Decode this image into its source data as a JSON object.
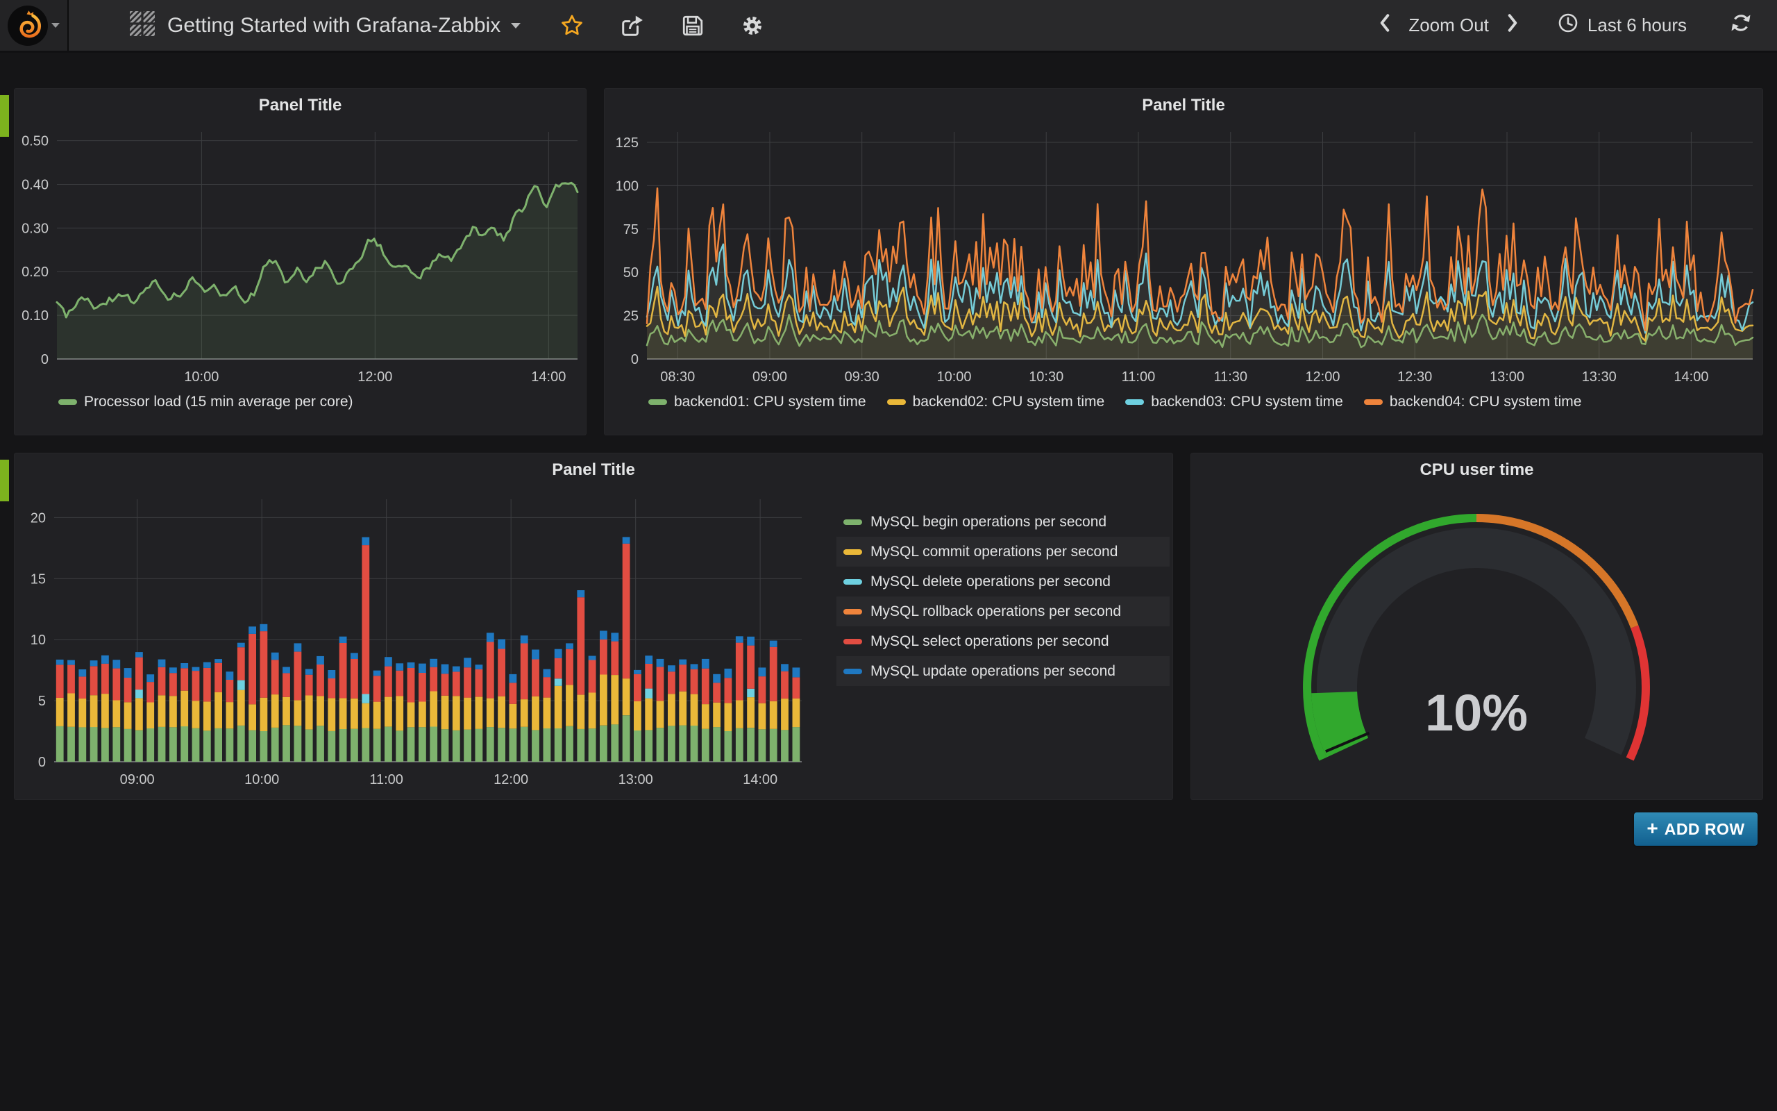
{
  "navbar": {
    "title": "Getting Started with Grafana-Zabbix",
    "zoom_out": "Zoom Out",
    "time_range": "Last 6 hours"
  },
  "add_row": {
    "icon": "+",
    "label": "ADD ROW"
  },
  "colors": {
    "green": "#7EB26D",
    "yellow": "#EAB839",
    "cyan": "#6ED0E0",
    "orange": "#EF843C",
    "red": "#E24D42",
    "blue": "#1F78C1",
    "gauge_green": "rgba(50,172,45,0.97)",
    "gauge_orange": "rgba(237,129,40,0.89)",
    "gauge_red": "rgba(245,54,54,0.9)",
    "star": "#F6A821",
    "row_strip": "#7db31e"
  },
  "chart_data": [
    {
      "id": "processor-load",
      "type": "line",
      "title": "Panel Title",
      "ylim": [
        0,
        0.52
      ],
      "points": 170,
      "fill": 0.13,
      "noise_seed": 55,
      "yticks": [
        {
          "v": 0,
          "label": "0"
        },
        {
          "v": 0.1,
          "label": "0.10"
        },
        {
          "v": 0.2,
          "label": "0.20"
        },
        {
          "v": 0.3,
          "label": "0.30"
        },
        {
          "v": 0.4,
          "label": "0.40"
        },
        {
          "v": 0.5,
          "label": "0.50"
        }
      ],
      "xticks": [
        {
          "p": 0.2778,
          "label": "10:00"
        },
        {
          "p": 0.6111,
          "label": "12:00"
        },
        {
          "p": 0.9444,
          "label": "14:00"
        }
      ],
      "series": [
        {
          "name": "Processor load (15 min average per core)",
          "color": "#7EB26D",
          "noise": 0.008,
          "keypoints": [
            [
              0,
              0.13
            ],
            [
              0.02,
              0.1
            ],
            [
              0.05,
              0.14
            ],
            [
              0.07,
              0.12
            ],
            [
              0.1,
              0.135
            ],
            [
              0.13,
              0.145
            ],
            [
              0.15,
              0.13
            ],
            [
              0.17,
              0.16
            ],
            [
              0.19,
              0.175
            ],
            [
              0.21,
              0.14
            ],
            [
              0.24,
              0.15
            ],
            [
              0.26,
              0.185
            ],
            [
              0.28,
              0.155
            ],
            [
              0.3,
              0.17
            ],
            [
              0.32,
              0.145
            ],
            [
              0.34,
              0.165
            ],
            [
              0.36,
              0.13
            ],
            [
              0.38,
              0.15
            ],
            [
              0.4,
              0.22
            ],
            [
              0.42,
              0.22
            ],
            [
              0.44,
              0.17
            ],
            [
              0.46,
              0.21
            ],
            [
              0.48,
              0.175
            ],
            [
              0.5,
              0.21
            ],
            [
              0.52,
              0.22
            ],
            [
              0.54,
              0.17
            ],
            [
              0.56,
              0.195
            ],
            [
              0.58,
              0.22
            ],
            [
              0.6,
              0.275
            ],
            [
              0.62,
              0.26
            ],
            [
              0.64,
              0.21
            ],
            [
              0.66,
              0.22
            ],
            [
              0.68,
              0.2
            ],
            [
              0.7,
              0.19
            ],
            [
              0.72,
              0.22
            ],
            [
              0.74,
              0.24
            ],
            [
              0.76,
              0.23
            ],
            [
              0.78,
              0.26
            ],
            [
              0.8,
              0.3
            ],
            [
              0.82,
              0.28
            ],
            [
              0.84,
              0.3
            ],
            [
              0.86,
              0.27
            ],
            [
              0.88,
              0.33
            ],
            [
              0.9,
              0.35
            ],
            [
              0.92,
              0.41
            ],
            [
              0.94,
              0.34
            ],
            [
              0.96,
              0.4
            ],
            [
              0.98,
              0.41
            ],
            [
              1,
              0.385
            ]
          ]
        }
      ]
    },
    {
      "id": "cpu-system",
      "type": "line",
      "title": "Panel Title",
      "ylim": [
        0,
        131
      ],
      "points": 320,
      "fill": 0.06,
      "activity_seed": 1234,
      "yticks": [
        {
          "v": 0,
          "label": "0"
        },
        {
          "v": 25,
          "label": "25"
        },
        {
          "v": 50,
          "label": "50"
        },
        {
          "v": 75,
          "label": "75"
        },
        {
          "v": 100,
          "label": "100"
        },
        {
          "v": 125,
          "label": "125"
        }
      ],
      "xticks": [
        {
          "p": 0.0278,
          "label": "08:30"
        },
        {
          "p": 0.1111,
          "label": "09:00"
        },
        {
          "p": 0.1944,
          "label": "09:30"
        },
        {
          "p": 0.2778,
          "label": "10:00"
        },
        {
          "p": 0.3611,
          "label": "10:30"
        },
        {
          "p": 0.4444,
          "label": "11:00"
        },
        {
          "p": 0.5278,
          "label": "11:30"
        },
        {
          "p": 0.6111,
          "label": "12:00"
        },
        {
          "p": 0.6944,
          "label": "12:30"
        },
        {
          "p": 0.7778,
          "label": "13:00"
        },
        {
          "p": 0.8611,
          "label": "13:30"
        },
        {
          "p": 0.9444,
          "label": "14:00"
        }
      ],
      "series": [
        {
          "name": "backend01: CPU system time",
          "color": "#7EB26D",
          "min": 7,
          "scale": 17,
          "noise": 4,
          "cap": 45
        },
        {
          "name": "backend02: CPU system time",
          "color": "#EAB839",
          "min": 11,
          "scale": 32,
          "noise": 7,
          "cap": 70
        },
        {
          "name": "backend03: CPU system time",
          "color": "#6ED0E0",
          "min": 15,
          "scale": 52,
          "noise": 9,
          "cap": 100
        },
        {
          "name": "backend04: CPU system time",
          "color": "#EF843C",
          "min": 16,
          "scale": 80,
          "noise": 12,
          "cap": 118
        }
      ]
    },
    {
      "id": "mysql-ops",
      "type": "bar",
      "title": "Panel Title",
      "ylim": [
        0,
        21.5
      ],
      "bars": 66,
      "seed": 2024,
      "yticks": [
        {
          "v": 0,
          "label": "0"
        },
        {
          "v": 5,
          "label": "5"
        },
        {
          "v": 10,
          "label": "10"
        },
        {
          "v": 15,
          "label": "15"
        },
        {
          "v": 20,
          "label": "20"
        }
      ],
      "xticks": [
        {
          "p": 0.1111,
          "label": "09:00"
        },
        {
          "p": 0.2778,
          "label": "10:00"
        },
        {
          "p": 0.4444,
          "label": "11:00"
        },
        {
          "p": 0.6111,
          "label": "12:00"
        },
        {
          "p": 0.7778,
          "label": "13:00"
        },
        {
          "p": 0.9444,
          "label": "14:00"
        }
      ],
      "series": [
        {
          "name": "MySQL begin operations per second",
          "color": "#7EB26D",
          "base": 2.75,
          "vr": 0.25,
          "spikes": {
            "49": 0.5,
            "50": 0.9
          }
        },
        {
          "name": "MySQL commit operations per second",
          "color": "#EAB839",
          "base": 2.5,
          "vr": 0.5,
          "spikes": {
            "44": 0.9,
            "45": 1.2,
            "47": 0.8,
            "48": 1.5,
            "49": 1.3,
            "50": 0.8
          }
        },
        {
          "name": "MySQL delete operations per second",
          "color": "#6ED0E0",
          "base": 0,
          "vr": 0,
          "spikes": {
            "7": 0.7,
            "16": 0.8,
            "27": 0.75,
            "44": 0.6,
            "52": 0.8,
            "61": 0.7
          }
        },
        {
          "name": "MySQL rollback operations per second",
          "color": "#EF843C",
          "base": 0,
          "vr": 0,
          "spikes": {}
        },
        {
          "name": "MySQL select operations per second",
          "color": "#E24D42",
          "base": 2.3,
          "vr": 0.7,
          "spikes": {
            "17": 3.2,
            "18": 2.6,
            "21": 1.6,
            "25": 1.6,
            "26": 1.0,
            "27": 9.6,
            "38": 1.8,
            "39": 1.2,
            "41": 2.2,
            "42": 1.4,
            "46": 6.0,
            "50": 8.4,
            "60": 2.6,
            "61": 1.2,
            "63": 2.4
          }
        },
        {
          "name": "MySQL update operations per second",
          "color": "#1F78C1",
          "base": 0.55,
          "vr": 0.25,
          "spikes": {
            "27": 0.2,
            "46": 0.2,
            "50": 0.2
          }
        }
      ]
    },
    {
      "id": "cpu-user-gauge",
      "type": "gauge",
      "title": "CPU user time",
      "value": 10,
      "unit": "%",
      "display": "10%",
      "min": 0,
      "max": 100,
      "thresholds": [
        {
          "upto": 50,
          "color": "rgba(50,172,45,0.97)"
        },
        {
          "upto": 80,
          "color": "rgba(237,129,40,0.89)"
        },
        {
          "upto": 100,
          "color": "rgba(245,54,54,0.9)"
        }
      ]
    }
  ]
}
